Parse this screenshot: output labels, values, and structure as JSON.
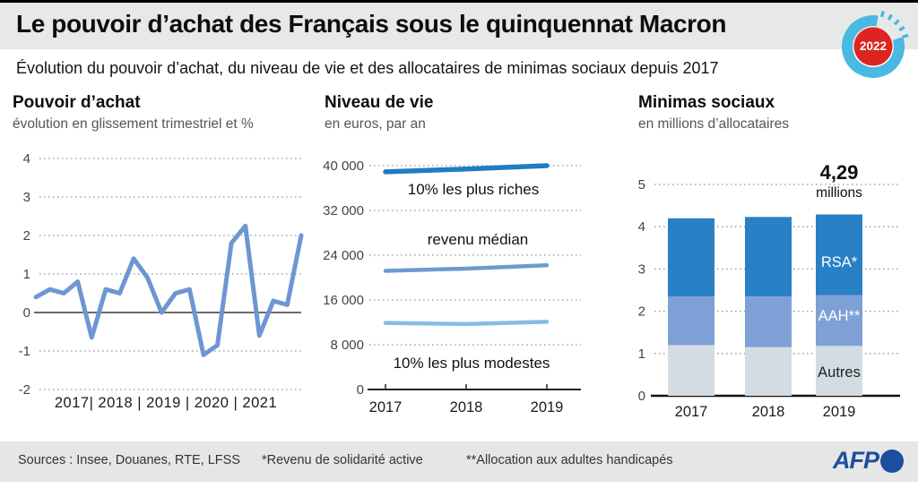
{
  "header": {
    "title": "Le pouvoir d’achat des Français sous le quinquennat Macron",
    "subtitle": "Évolution du pouvoir d’achat, du niveau de vie et des allocataires de minimas sociaux depuis 2017",
    "badge_year": "2022"
  },
  "footer": {
    "sources": "Sources : Insee, Douanes, RTE, LFSS",
    "note_rsa": "*Revenu de solidarité active",
    "note_aah": "**Allocation aux adultes handicapés",
    "logo_text": "AFP"
  },
  "colors": {
    "band_gray": "#e7e9e9",
    "grid_dot": "#9a9a9a",
    "axis_dark": "#3a3a3a",
    "badge_ring": "#49b9e1",
    "badge_red": "#dc2521",
    "afp_blue": "#1c4f9e"
  },
  "chart_data": [
    {
      "id": "pouvoir-achat",
      "type": "line",
      "title": "Pouvoir d’achat",
      "subtitle": "évolution en glissement trimestriel et %",
      "ylabel": "%",
      "ylim": [
        -2,
        4
      ],
      "yticks": [
        4,
        3,
        2,
        1,
        0,
        -1,
        -2
      ],
      "grid": "dotted",
      "x_years": [
        "2017",
        "2018",
        "2019",
        "2020",
        "2021"
      ],
      "x_label_display": "2017| 2018 | 2019 | 2020 | 2021",
      "x_note": "quarterly values, 2017-Q1 to 2021-Q4",
      "values_quarterly": [
        0.4,
        0.6,
        0.5,
        0.8,
        -0.65,
        0.6,
        0.5,
        1.4,
        0.9,
        0.0,
        0.5,
        0.6,
        -1.1,
        -0.85,
        1.8,
        2.25,
        -0.6,
        0.3,
        0.2,
        2.0
      ],
      "line_color": "#6e96d3"
    },
    {
      "id": "niveau-de-vie",
      "type": "line",
      "title": "Niveau de vie",
      "subtitle": "en euros, par an",
      "ylim": [
        0,
        42000
      ],
      "yticks": [
        {
          "label": "40 000",
          "value": 40000
        },
        {
          "label": "32 000",
          "value": 32000
        },
        {
          "label": "24 000",
          "value": 24000
        },
        {
          "label": "16 000",
          "value": 16000
        },
        {
          "label": "8 000",
          "value": 8000
        },
        {
          "label": "0",
          "value": 0
        }
      ],
      "grid": "dotted",
      "x": [
        "2017",
        "2018",
        "2019"
      ],
      "series": [
        {
          "name": "10% les plus riches",
          "values": [
            38900,
            39400,
            40000
          ],
          "color": "#1f7dc2"
        },
        {
          "name": "revenu médian",
          "values": [
            21200,
            21600,
            22200
          ],
          "color": "#6f9ad0"
        },
        {
          "name": "10% les plus modestes",
          "values": [
            11900,
            11700,
            12100
          ],
          "color": "#85bce2"
        }
      ]
    },
    {
      "id": "minimas-sociaux",
      "type": "stacked-bar",
      "title": "Minimas sociaux",
      "subtitle": "en millions d’allocataires",
      "ylim": [
        0,
        5
      ],
      "yticks": [
        5,
        4,
        3,
        2,
        1,
        0
      ],
      "grid": "dotted",
      "categories": [
        "2017",
        "2018",
        "2019"
      ],
      "annotation": {
        "value": "4,29",
        "unit": "millions"
      },
      "totals": [
        4.2,
        4.23,
        4.29
      ],
      "series": [
        {
          "name": "Autres",
          "values": [
            1.2,
            1.15,
            1.18
          ],
          "color": "#d3dce3",
          "label_color": "#222"
        },
        {
          "name": "AAH**",
          "values": [
            1.15,
            1.2,
            1.2
          ],
          "color": "#7ea0d6",
          "label_color": "#ffffff"
        },
        {
          "name": "RSA*",
          "values": [
            1.85,
            1.88,
            1.91
          ],
          "color": "#2a80c4",
          "label_color": "#ffffff"
        }
      ]
    }
  ]
}
